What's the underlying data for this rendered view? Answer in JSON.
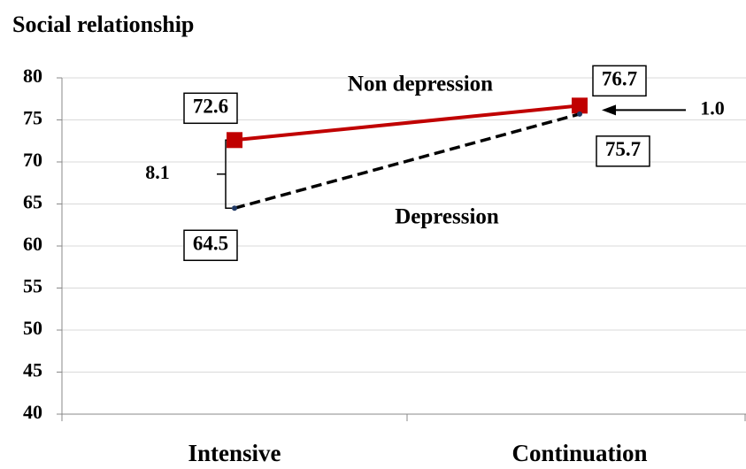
{
  "chart_data": {
    "type": "line",
    "title": "Social relationship",
    "categories": [
      "Intensive",
      "Continuation"
    ],
    "series": [
      {
        "name": "Non depression",
        "color": "#c00000",
        "values": [
          72.6,
          76.7
        ]
      },
      {
        "name": "Depression",
        "color": "#000000",
        "values": [
          64.5,
          75.7
        ]
      }
    ],
    "ylim": [
      40,
      80
    ],
    "yticks": [
      40,
      45,
      50,
      55,
      60,
      65,
      70,
      75,
      80
    ],
    "grid": true,
    "annotations": [
      "8.1",
      "1.0"
    ]
  }
}
